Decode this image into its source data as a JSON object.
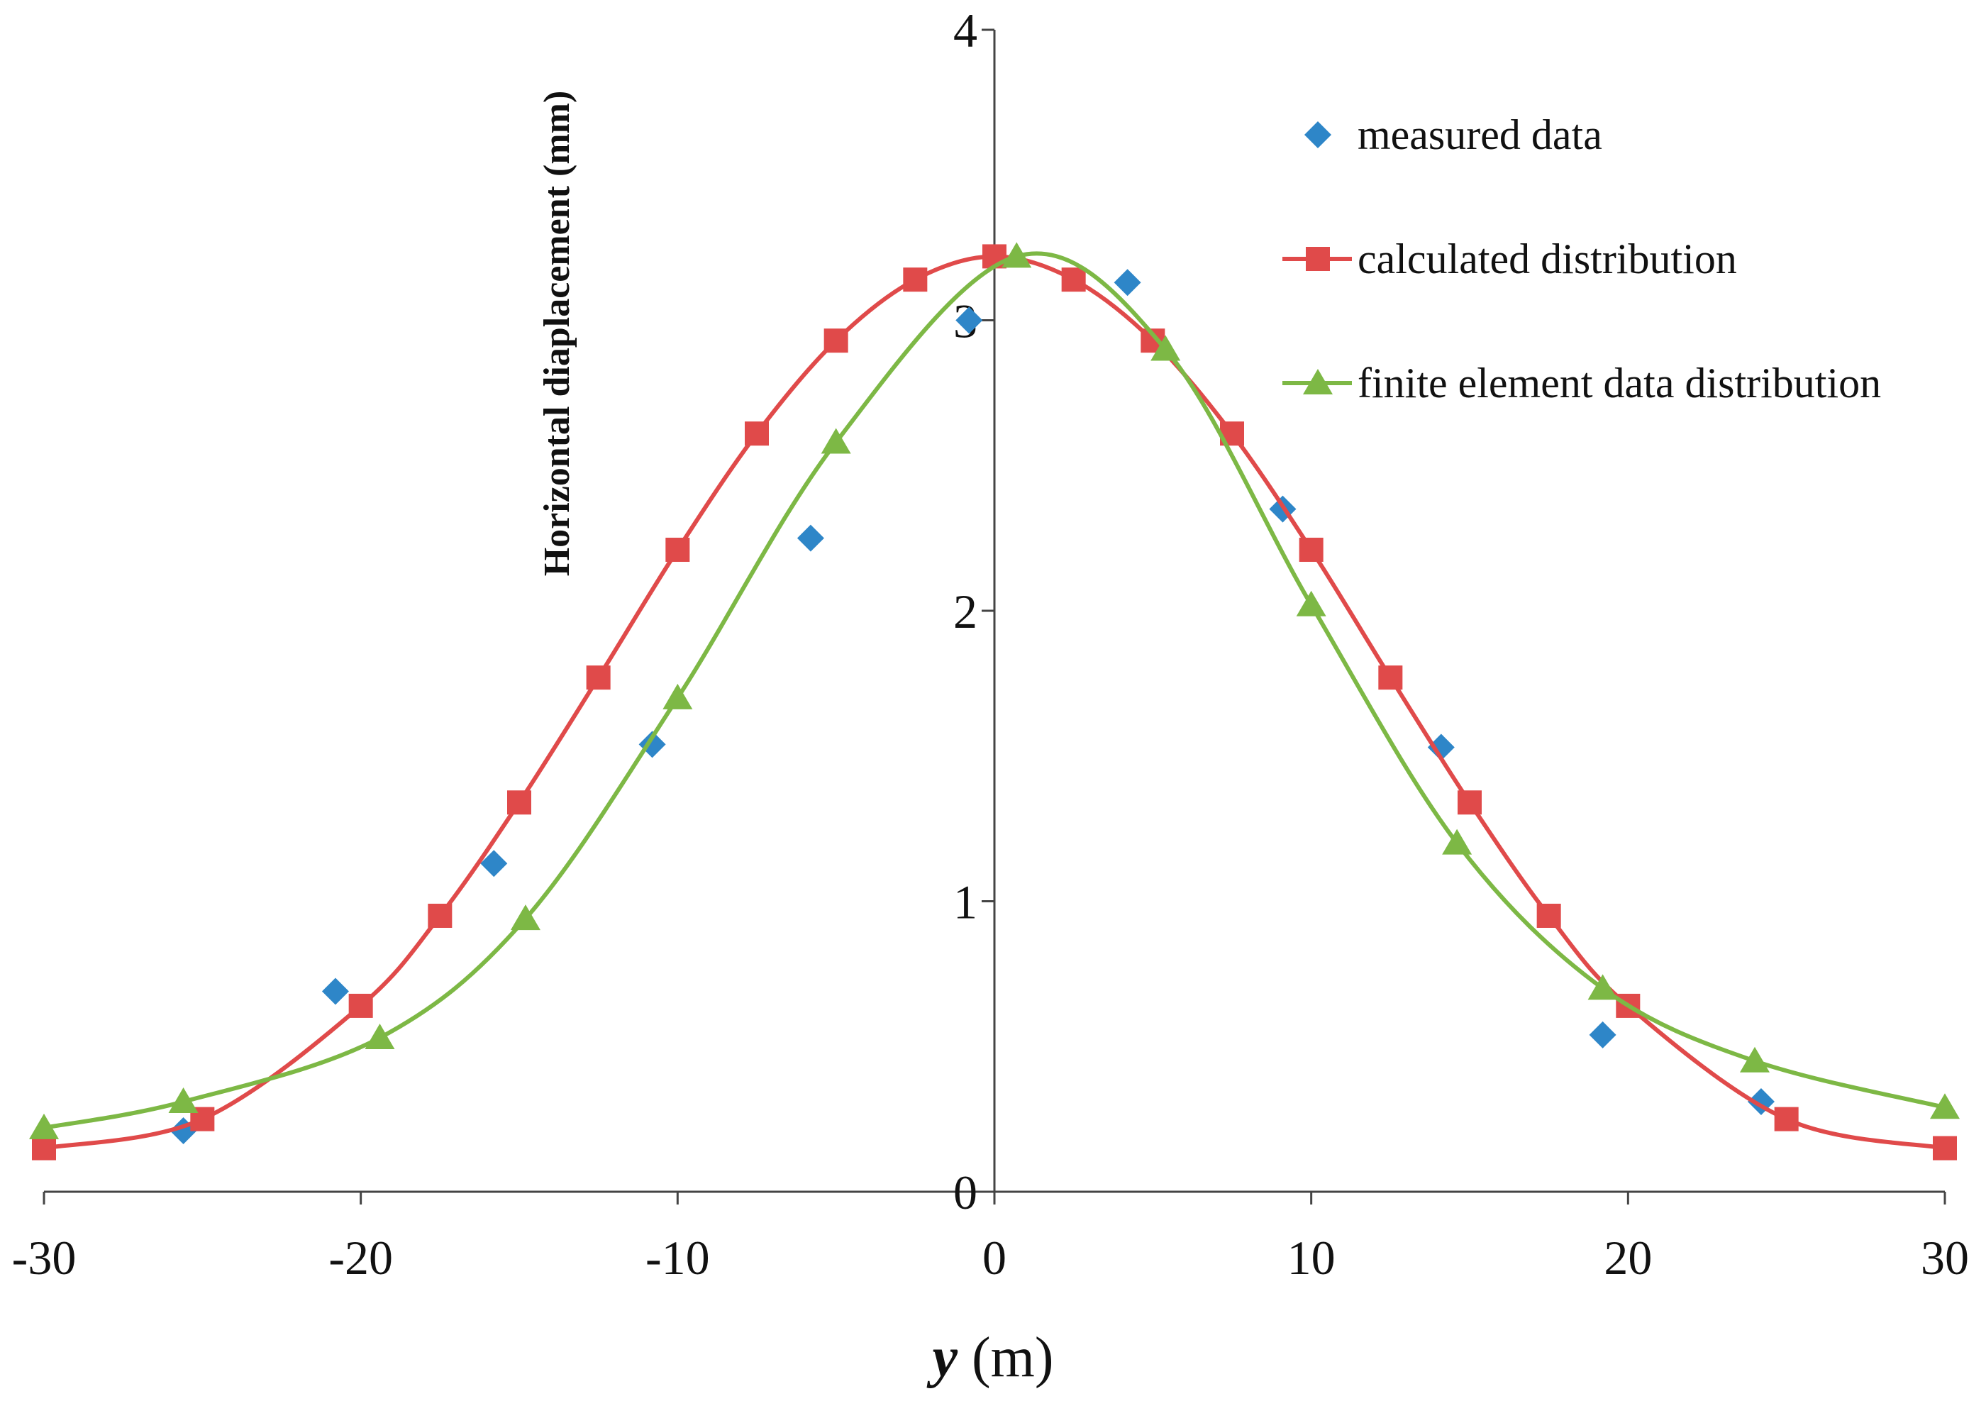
{
  "chart_data": {
    "type": "scatter",
    "title": "",
    "xlabel_var": "y",
    "xlabel_unit": " (m)",
    "ylabel": "Horizontal  diaplacement  (mm)",
    "xlim": [
      -30,
      30
    ],
    "ylim": [
      0,
      4
    ],
    "x_ticks": [
      -30,
      -20,
      -10,
      0,
      10,
      20,
      30
    ],
    "x_tick_labels": [
      "-30",
      "-20",
      "-10",
      "0",
      "10",
      "20",
      "30"
    ],
    "y_ticks": [
      0,
      1,
      2,
      3,
      4
    ],
    "y_tick_labels": [
      "0",
      "1",
      "2",
      "3",
      "4"
    ],
    "grid": false,
    "legend_position": "top-right",
    "colors": {
      "measured": "#2E86C8",
      "calculated": "#E04A4A",
      "finite": "#7DB845"
    },
    "series": [
      {
        "name": "measured data",
        "marker": "diamond",
        "line": false,
        "x": [
          -25.6,
          -20.8,
          -15.8,
          -10.8,
          -5.8,
          -0.8,
          4.2,
          9.1,
          14.1,
          19.2,
          24.2
        ],
        "y": [
          0.21,
          0.69,
          1.13,
          1.54,
          2.25,
          3.0,
          3.13,
          2.35,
          1.53,
          0.54,
          0.31
        ]
      },
      {
        "name": "calculated distribution",
        "marker": "square",
        "line": true,
        "x": [
          -30,
          -25,
          -20,
          -17.5,
          -15,
          -12.5,
          -10,
          -7.5,
          -5,
          -2.5,
          0,
          2.5,
          5,
          7.5,
          10,
          12.5,
          15,
          17.5,
          20,
          25,
          30
        ],
        "y": [
          0.15,
          0.25,
          0.64,
          0.95,
          1.34,
          1.77,
          2.21,
          2.61,
          2.93,
          3.14,
          3.22,
          3.14,
          2.93,
          2.61,
          2.21,
          1.77,
          1.34,
          0.95,
          0.64,
          0.25,
          0.15
        ]
      },
      {
        "name": "finite element data distribution",
        "marker": "triangle",
        "line": true,
        "x": [
          -30,
          -25.6,
          -19.4,
          -14.8,
          -10,
          -5,
          0.7,
          5.4,
          10,
          14.6,
          19.2,
          24,
          30
        ],
        "y": [
          0.22,
          0.31,
          0.53,
          0.94,
          1.7,
          2.58,
          3.22,
          2.9,
          2.02,
          1.2,
          0.7,
          0.45,
          0.29
        ]
      }
    ]
  }
}
